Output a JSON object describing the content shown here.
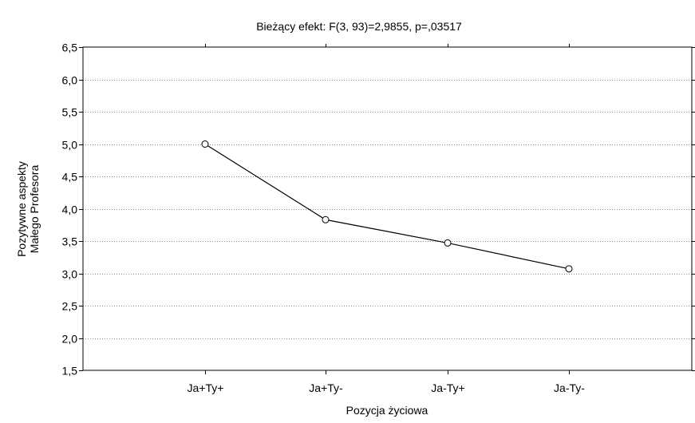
{
  "chart_data": {
    "type": "line",
    "title": "Bieżący efekt: F(3, 93)=2,9855, p=,03517",
    "xlabel": "Pozycja życiowa",
    "ylabel_lines": [
      "Pozytywne aspekty",
      "Małego Profesora"
    ],
    "categories": [
      "Ja+Ty+",
      "Ja+Ty-",
      "Ja-Ty+",
      "Ja-Ty-"
    ],
    "series": [
      {
        "values": [
          5.0,
          3.83,
          3.47,
          3.07
        ]
      }
    ],
    "ylim": [
      1.5,
      6.5
    ],
    "yticks": [
      "1,5",
      "2,0",
      "2,5",
      "3,0",
      "3,5",
      "4,0",
      "4,5",
      "5,0",
      "5,5",
      "6,0",
      "6,5"
    ],
    "ytick_values": [
      1.5,
      2.0,
      2.5,
      3.0,
      3.5,
      4.0,
      4.5,
      5.0,
      5.5,
      6.0,
      6.5
    ],
    "grid": "horizontal-dotted",
    "colors": {
      "line": "#000000",
      "marker_fill": "#ffffff",
      "grid": "#888888"
    }
  }
}
